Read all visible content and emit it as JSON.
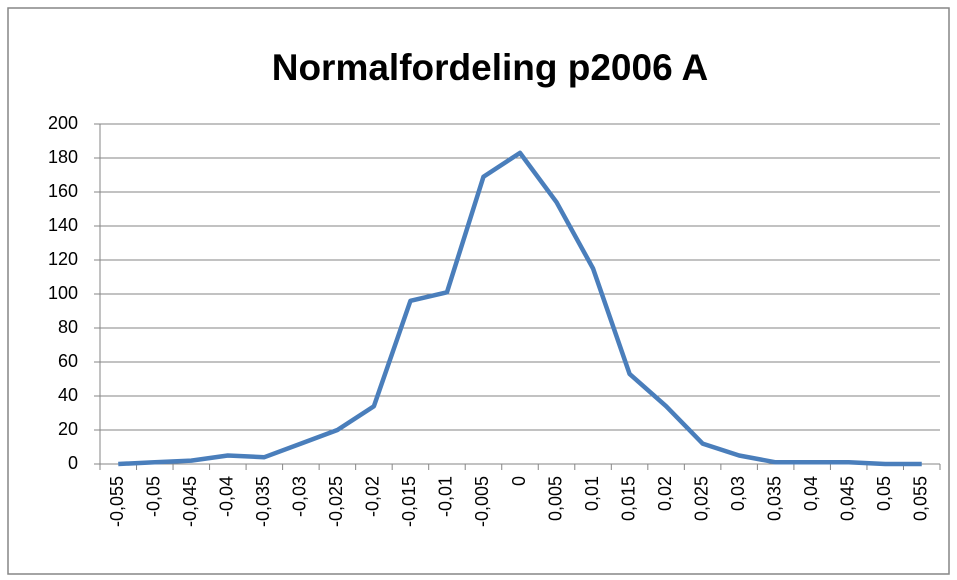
{
  "chart_data": {
    "type": "line",
    "title": "Normalfordeling p2006 A",
    "categories": [
      "-0,055",
      "-0,05",
      "-0,045",
      "-0,04",
      "-0,035",
      "-0,03",
      "-0,025",
      "-0,02",
      "-0,015",
      "-0,01",
      "-0,005",
      "0",
      "0,005",
      "0,01",
      "0,015",
      "0,02",
      "0,025",
      "0,03",
      "0,035",
      "0,04",
      "0,045",
      "0,05",
      "0,055"
    ],
    "series": [
      {
        "color": "#4a7ebb",
        "values": [
          0,
          1,
          2,
          5,
          4,
          12,
          20,
          34,
          96,
          101,
          169,
          183,
          154,
          115,
          53,
          34,
          12,
          5,
          1,
          1,
          1,
          0,
          0
        ]
      }
    ],
    "ylim": [
      0,
      200
    ],
    "yticks": [
      0,
      20,
      40,
      60,
      80,
      100,
      120,
      140,
      160,
      180,
      200
    ],
    "grid": true
  }
}
